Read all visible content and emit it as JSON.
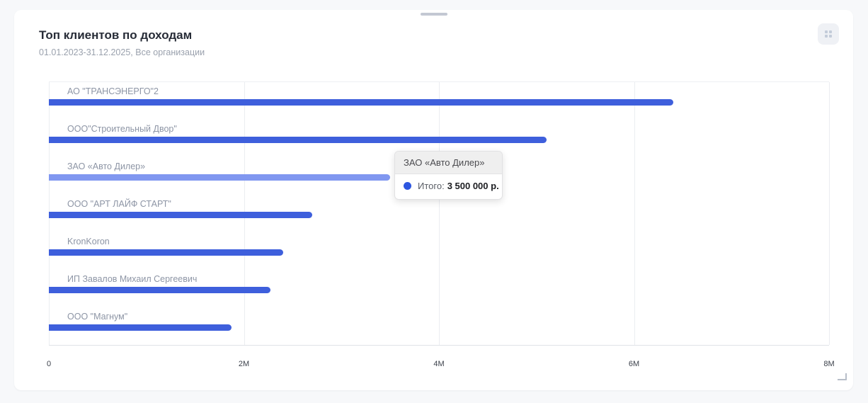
{
  "card": {
    "title": "Топ клиентов по доходам",
    "subtitle": "01.01.2023-31.12.2025, Все организации"
  },
  "chart_data": {
    "type": "bar",
    "orientation": "horizontal",
    "title": "Топ клиентов по доходам",
    "subtitle": "01.01.2023-31.12.2025, Все организации",
    "categories": [
      "АО \"ТРАНСЭНЕРГО\"2",
      "ООО\"Строительный Двор\"",
      "ЗАО «Авто Дилер»",
      "ООО \"АРТ ЛАЙФ СТАРТ\"",
      "KronKoron",
      "ИП Завалов Михаил Сергеевич",
      "ООО \"Магнум\""
    ],
    "values": [
      6400000,
      5100000,
      3500000,
      2700000,
      2400000,
      2270000,
      1870000
    ],
    "series_name": "Итого",
    "highlighted_index": 2,
    "x_ticks": [
      "0",
      "2M",
      "4M",
      "6M",
      "8M"
    ],
    "xlim": [
      0,
      8000000
    ],
    "grid": "vertical",
    "bar_color": "#3e5fdc",
    "bar_color_highlight": "#8097f0",
    "unit": "р."
  },
  "tooltip": {
    "title": "ЗАО «Авто Дилер»",
    "label": "Итого:",
    "value": "3 500 000 р.",
    "marker_color": "#2d56e0"
  }
}
